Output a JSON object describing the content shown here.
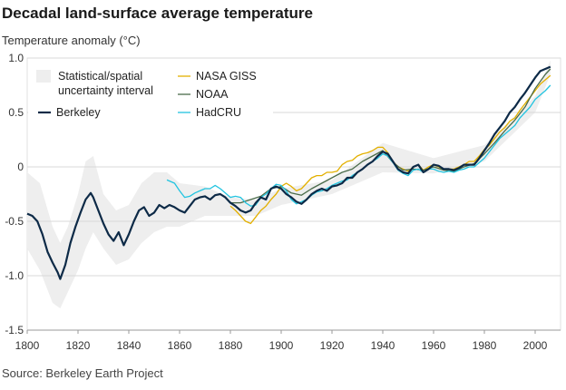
{
  "chart_data": {
    "type": "line",
    "title": "Decadal land-surface average temperature",
    "ylabel": "Temperature anomaly (°C)",
    "xlabel": "",
    "source": "Source: Berkeley Earth Project",
    "xlim": [
      1800,
      2010
    ],
    "ylim": [
      -1.5,
      1.0
    ],
    "xticks": [
      1800,
      1820,
      1840,
      1860,
      1880,
      1900,
      1920,
      1940,
      1960,
      1980,
      2000
    ],
    "yticks": [
      -1.5,
      -1.0,
      -0.5,
      0,
      0.5,
      1.0
    ],
    "ytick_labels": [
      "-1.5",
      "-1.0",
      "-0.5",
      "0",
      "0.5",
      "1.0"
    ],
    "grid": "horizontal",
    "legend": {
      "position": "top-left",
      "band_label": [
        "Statistical/spatial",
        "uncertainty interval"
      ]
    },
    "colors": {
      "Berkeley": "#0d2a47",
      "NASA GISS": "#e3b000",
      "NOAA": "#4a6b4a",
      "HadCRU": "#22c4e0",
      "band": "#eeeeee",
      "grid": "#d8d8d8"
    },
    "uncertainty": {
      "x": [
        1800,
        1805,
        1810,
        1813,
        1816,
        1820,
        1823,
        1826,
        1830,
        1835,
        1840,
        1845,
        1850,
        1855,
        1860,
        1870,
        1880,
        1890,
        1900,
        1920,
        1940,
        1960,
        1980,
        2000,
        2006
      ],
      "low": [
        -0.75,
        -0.95,
        -1.25,
        -1.3,
        -1.15,
        -0.95,
        -0.75,
        -0.6,
        -0.75,
        -0.9,
        -0.85,
        -0.7,
        -0.6,
        -0.55,
        -0.55,
        -0.45,
        -0.45,
        -0.45,
        -0.35,
        -0.25,
        -0.05,
        -0.06,
        0.05,
        0.5,
        0.85
      ],
      "high": [
        -0.05,
        -0.15,
        -0.55,
        -0.7,
        -0.55,
        -0.25,
        0.05,
        0.1,
        -0.25,
        -0.4,
        -0.35,
        -0.15,
        -0.05,
        -0.05,
        -0.15,
        -0.18,
        -0.28,
        -0.3,
        -0.2,
        -0.12,
        0.22,
        0.08,
        0.2,
        0.65,
        0.98
      ]
    },
    "series": [
      {
        "name": "Berkeley",
        "x": [
          1800,
          1802,
          1804,
          1806,
          1808,
          1810,
          1812,
          1813,
          1815,
          1817,
          1819,
          1821,
          1823,
          1825,
          1826,
          1828,
          1830,
          1832,
          1834,
          1836,
          1838,
          1840,
          1842,
          1844,
          1846,
          1848,
          1850,
          1852,
          1854,
          1856,
          1858,
          1860,
          1862,
          1864,
          1866,
          1868,
          1870,
          1872,
          1874,
          1876,
          1878,
          1880,
          1882,
          1884,
          1886,
          1888,
          1890,
          1892,
          1894,
          1896,
          1898,
          1900,
          1902,
          1904,
          1906,
          1908,
          1910,
          1912,
          1914,
          1916,
          1918,
          1920,
          1922,
          1924,
          1926,
          1928,
          1930,
          1932,
          1934,
          1936,
          1938,
          1940,
          1942,
          1944,
          1946,
          1948,
          1950,
          1952,
          1954,
          1956,
          1958,
          1960,
          1962,
          1964,
          1966,
          1968,
          1970,
          1972,
          1974,
          1976,
          1978,
          1980,
          1982,
          1984,
          1986,
          1988,
          1990,
          1992,
          1994,
          1996,
          1998,
          2000,
          2002,
          2004,
          2006
        ],
        "y": [
          -0.43,
          -0.45,
          -0.5,
          -0.62,
          -0.78,
          -0.88,
          -0.97,
          -1.03,
          -0.9,
          -0.7,
          -0.55,
          -0.42,
          -0.3,
          -0.24,
          -0.28,
          -0.4,
          -0.52,
          -0.62,
          -0.68,
          -0.6,
          -0.72,
          -0.62,
          -0.5,
          -0.4,
          -0.37,
          -0.45,
          -0.42,
          -0.35,
          -0.38,
          -0.35,
          -0.37,
          -0.4,
          -0.42,
          -0.36,
          -0.3,
          -0.28,
          -0.27,
          -0.3,
          -0.26,
          -0.25,
          -0.28,
          -0.33,
          -0.36,
          -0.4,
          -0.42,
          -0.4,
          -0.33,
          -0.28,
          -0.3,
          -0.2,
          -0.18,
          -0.2,
          -0.25,
          -0.28,
          -0.32,
          -0.34,
          -0.3,
          -0.25,
          -0.22,
          -0.2,
          -0.22,
          -0.18,
          -0.17,
          -0.15,
          -0.1,
          -0.1,
          -0.05,
          -0.02,
          0.02,
          0.05,
          0.1,
          0.14,
          0.12,
          0.05,
          -0.02,
          -0.05,
          -0.06,
          0.0,
          0.02,
          -0.05,
          -0.02,
          0.02,
          0.01,
          -0.02,
          -0.02,
          -0.03,
          -0.01,
          0.02,
          0.02,
          0.02,
          0.08,
          0.15,
          0.22,
          0.3,
          0.36,
          0.42,
          0.5,
          0.55,
          0.62,
          0.68,
          0.75,
          0.82,
          0.88,
          0.9,
          0.92
        ]
      },
      {
        "name": "NASA GISS",
        "x": [
          1880,
          1882,
          1884,
          1886,
          1888,
          1890,
          1892,
          1894,
          1896,
          1898,
          1900,
          1902,
          1904,
          1906,
          1908,
          1910,
          1912,
          1914,
          1916,
          1918,
          1920,
          1922,
          1924,
          1926,
          1928,
          1930,
          1932,
          1934,
          1936,
          1938,
          1940,
          1942,
          1944,
          1946,
          1948,
          1950,
          1952,
          1954,
          1956,
          1958,
          1960,
          1962,
          1964,
          1966,
          1968,
          1970,
          1972,
          1974,
          1976,
          1978,
          1980,
          1982,
          1984,
          1986,
          1988,
          1990,
          1992,
          1994,
          1996,
          1998,
          2000,
          2002,
          2004,
          2006
        ],
        "y": [
          -0.36,
          -0.4,
          -0.45,
          -0.5,
          -0.52,
          -0.46,
          -0.4,
          -0.36,
          -0.3,
          -0.25,
          -0.18,
          -0.15,
          -0.18,
          -0.22,
          -0.2,
          -0.15,
          -0.1,
          -0.08,
          -0.08,
          -0.05,
          -0.05,
          -0.04,
          0.02,
          0.05,
          0.06,
          0.1,
          0.12,
          0.13,
          0.15,
          0.18,
          0.18,
          0.13,
          0.05,
          0.0,
          -0.02,
          -0.04,
          0.0,
          0.02,
          -0.03,
          0.0,
          0.02,
          0.0,
          -0.03,
          -0.02,
          -0.02,
          0.0,
          0.02,
          0.05,
          0.05,
          0.1,
          0.16,
          0.2,
          0.26,
          0.32,
          0.36,
          0.42,
          0.45,
          0.52,
          0.58,
          0.64,
          0.7,
          0.76,
          0.8,
          0.84
        ]
      },
      {
        "name": "NOAA",
        "x": [
          1880,
          1884,
          1888,
          1892,
          1896,
          1900,
          1904,
          1908,
          1912,
          1916,
          1920,
          1924,
          1928,
          1932,
          1936,
          1940,
          1944,
          1948,
          1952,
          1956,
          1960,
          1964,
          1968,
          1972,
          1976,
          1980,
          1984,
          1988,
          1992,
          1996,
          2000,
          2004,
          2006
        ],
        "y": [
          -0.33,
          -0.33,
          -0.3,
          -0.27,
          -0.2,
          -0.18,
          -0.24,
          -0.26,
          -0.2,
          -0.15,
          -0.1,
          -0.05,
          -0.02,
          0.05,
          0.1,
          0.15,
          0.04,
          -0.03,
          -0.02,
          -0.03,
          0.0,
          -0.03,
          -0.04,
          0.0,
          0.03,
          0.12,
          0.22,
          0.33,
          0.43,
          0.55,
          0.72,
          0.85,
          0.9
        ]
      },
      {
        "name": "HadCRU",
        "x": [
          1855,
          1858,
          1860,
          1862,
          1864,
          1866,
          1868,
          1870,
          1872,
          1874,
          1876,
          1878,
          1880,
          1882,
          1884,
          1886,
          1888,
          1890,
          1892,
          1894,
          1896,
          1898,
          1900,
          1902,
          1904,
          1906,
          1908,
          1910,
          1912,
          1914,
          1916,
          1918,
          1920,
          1922,
          1924,
          1926,
          1928,
          1930,
          1932,
          1934,
          1936,
          1938,
          1940,
          1942,
          1944,
          1946,
          1948,
          1950,
          1952,
          1954,
          1956,
          1958,
          1960,
          1962,
          1964,
          1966,
          1968,
          1970,
          1972,
          1974,
          1976,
          1978,
          1980,
          1982,
          1984,
          1986,
          1988,
          1990,
          1992,
          1994,
          1996,
          1998,
          2000,
          2002,
          2004,
          2006
        ],
        "y": [
          -0.12,
          -0.15,
          -0.22,
          -0.28,
          -0.27,
          -0.24,
          -0.22,
          -0.2,
          -0.2,
          -0.17,
          -0.2,
          -0.24,
          -0.28,
          -0.27,
          -0.28,
          -0.33,
          -0.36,
          -0.35,
          -0.28,
          -0.25,
          -0.2,
          -0.16,
          -0.17,
          -0.22,
          -0.3,
          -0.34,
          -0.32,
          -0.3,
          -0.26,
          -0.23,
          -0.22,
          -0.2,
          -0.17,
          -0.15,
          -0.13,
          -0.12,
          -0.08,
          -0.05,
          -0.02,
          0.02,
          0.05,
          0.08,
          0.12,
          0.1,
          0.04,
          -0.03,
          -0.06,
          -0.08,
          -0.03,
          -0.02,
          -0.05,
          -0.02,
          -0.02,
          -0.04,
          -0.05,
          -0.04,
          -0.05,
          -0.03,
          -0.02,
          0.0,
          0.0,
          0.04,
          0.08,
          0.14,
          0.2,
          0.26,
          0.3,
          0.34,
          0.38,
          0.45,
          0.5,
          0.55,
          0.62,
          0.66,
          0.7,
          0.75
        ]
      }
    ]
  }
}
